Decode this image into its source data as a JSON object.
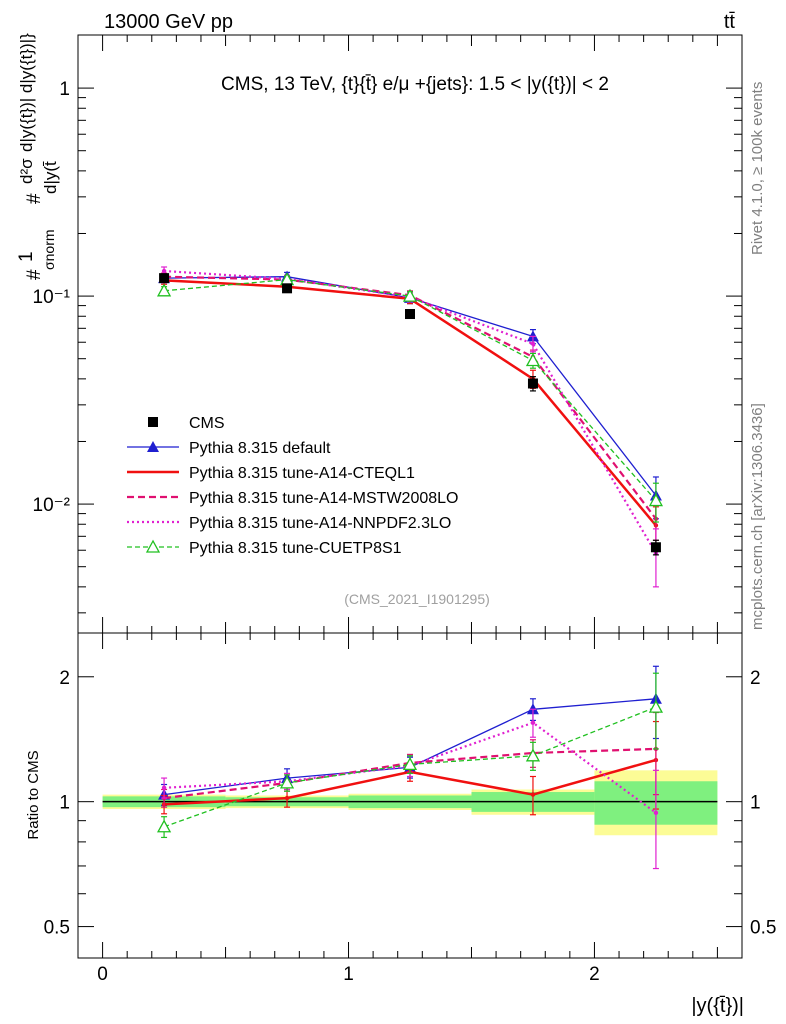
{
  "header": {
    "energy_label": "13000 GeV pp",
    "process_label": "tt̄"
  },
  "side_labels": {
    "rivet": "Rivet 4.1.0, ≥ 100k events",
    "mcplots": "mcplots.cern.ch [arXiv:1306.3436]"
  },
  "colors": {
    "CMS": "#000000",
    "default": "#1f1fd0",
    "CTEQL1": "#f01010",
    "MSTW": "#e01070",
    "NNPDF": "#e020d0",
    "CUETP8S1": "#20c020",
    "band_inner": "#7ff07f",
    "band_outer": "#fcfc96"
  },
  "chart_data": [
    {
      "id": "main",
      "type": "line",
      "title": "CMS, 13 TeV, {t}{t̄} e/μ +{jets}: 1.5 < |y({t})| < 2",
      "ylabel_lines": [
        "#",
        "1",
        "σnorm",
        "#",
        "d²σ",
        "d|y({t})| d|y({t})|}",
        "d|y(t̄"
      ],
      "yscale": "log",
      "ylim": [
        0.0024,
        1.8
      ],
      "xlim": [
        -0.1,
        2.6
      ],
      "y_tick_labels": [
        "10⁻²",
        "10⁻¹",
        "1"
      ],
      "y_ticks": [
        0.01,
        0.1,
        1
      ],
      "annotation": "(CMS_2021_I1901295)",
      "x": [
        0.25,
        0.75,
        1.25,
        1.75,
        2.25
      ],
      "bin_edges": [
        0,
        0.5,
        1.0,
        1.5,
        2.0,
        2.5
      ],
      "series": [
        {
          "key": "CMS",
          "name": "CMS",
          "values": [
            0.122,
            0.109,
            0.082,
            0.038,
            0.0062
          ],
          "errors": [
            0.004,
            0.004,
            0.003,
            0.003,
            0.0005
          ]
        },
        {
          "key": "default",
          "name": "Pythia 8.315 default",
          "values": [
            0.122,
            0.124,
            0.098,
            0.064,
            0.011
          ],
          "errors": [
            0.006,
            0.006,
            0.006,
            0.005,
            0.0025
          ]
        },
        {
          "key": "CTEQL1",
          "name": "Pythia 8.315 tune-A14-CTEQL1",
          "values": [
            0.119,
            0.111,
            0.097,
            0.04,
            0.0079
          ],
          "errors": [
            0.005,
            0.005,
            0.005,
            0.004,
            0.0018
          ]
        },
        {
          "key": "MSTW",
          "name": "Pythia 8.315 tune-A14-MSTW2008LO",
          "values": [
            0.124,
            0.12,
            0.101,
            0.051,
            0.0085
          ],
          "errors": [
            0.005,
            0.005,
            0.005,
            0.004,
            0.0018
          ]
        },
        {
          "key": "NNPDF",
          "name": "Pythia 8.315 tune-A14-NNPDF2.3LO",
          "values": [
            0.132,
            0.121,
            0.099,
            0.059,
            0.0058
          ],
          "errors": [
            0.006,
            0.005,
            0.005,
            0.005,
            0.0018
          ]
        },
        {
          "key": "CUETP8S1",
          "name": "Pythia 8.315 tune-CUETP8S1",
          "values": [
            0.106,
            0.12,
            0.1,
            0.049,
            0.0104
          ],
          "errors": [
            0.005,
            0.005,
            0.005,
            0.004,
            0.0022
          ]
        }
      ]
    },
    {
      "id": "ratio",
      "type": "line",
      "ylabel": "Ratio to CMS",
      "xlabel": "|y({t̄})|",
      "yscale": "log",
      "ylim": [
        0.42,
        2.55
      ],
      "xlim": [
        -0.1,
        2.6
      ],
      "x_ticks": [
        0,
        1,
        2
      ],
      "x_tick_labels": [
        "0",
        "1",
        "2"
      ],
      "y_ticks": [
        0.5,
        1,
        2
      ],
      "y_tick_labels": [
        "0.5",
        "1",
        "2"
      ],
      "x": [
        0.25,
        0.75,
        1.25,
        1.75,
        2.25
      ],
      "bin_edges": [
        0,
        0.5,
        1.0,
        1.5,
        2.0,
        2.5
      ],
      "band_inner": [
        [
          0.97,
          1.03
        ],
        [
          0.975,
          1.025
        ],
        [
          0.965,
          1.035
        ],
        [
          0.945,
          1.055
        ],
        [
          0.88,
          1.12
        ]
      ],
      "band_outer": [
        [
          0.96,
          1.04
        ],
        [
          0.965,
          1.035
        ],
        [
          0.955,
          1.045
        ],
        [
          0.93,
          1.07
        ],
        [
          0.83,
          1.19
        ]
      ],
      "series": [
        {
          "key": "default",
          "values": [
            1.04,
            1.14,
            1.21,
            1.67,
            1.77
          ],
          "errors": [
            0.06,
            0.06,
            0.07,
            0.1,
            0.35
          ]
        },
        {
          "key": "CTEQL1",
          "values": [
            0.985,
            1.02,
            1.18,
            1.04,
            1.26
          ],
          "errors": [
            0.05,
            0.05,
            0.06,
            0.11,
            0.3
          ]
        },
        {
          "key": "MSTW",
          "values": [
            1.02,
            1.11,
            1.24,
            1.31,
            1.34
          ],
          "errors": [
            0.05,
            0.05,
            0.06,
            0.1,
            0.3
          ]
        },
        {
          "key": "NNPDF",
          "values": [
            1.08,
            1.12,
            1.22,
            1.55,
            0.94
          ],
          "errors": [
            0.06,
            0.05,
            0.07,
            0.12,
            0.25
          ]
        },
        {
          "key": "CUETP8S1",
          "values": [
            0.87,
            1.11,
            1.23,
            1.29,
            1.69
          ],
          "errors": [
            0.05,
            0.05,
            0.06,
            0.1,
            0.35
          ]
        }
      ]
    }
  ]
}
